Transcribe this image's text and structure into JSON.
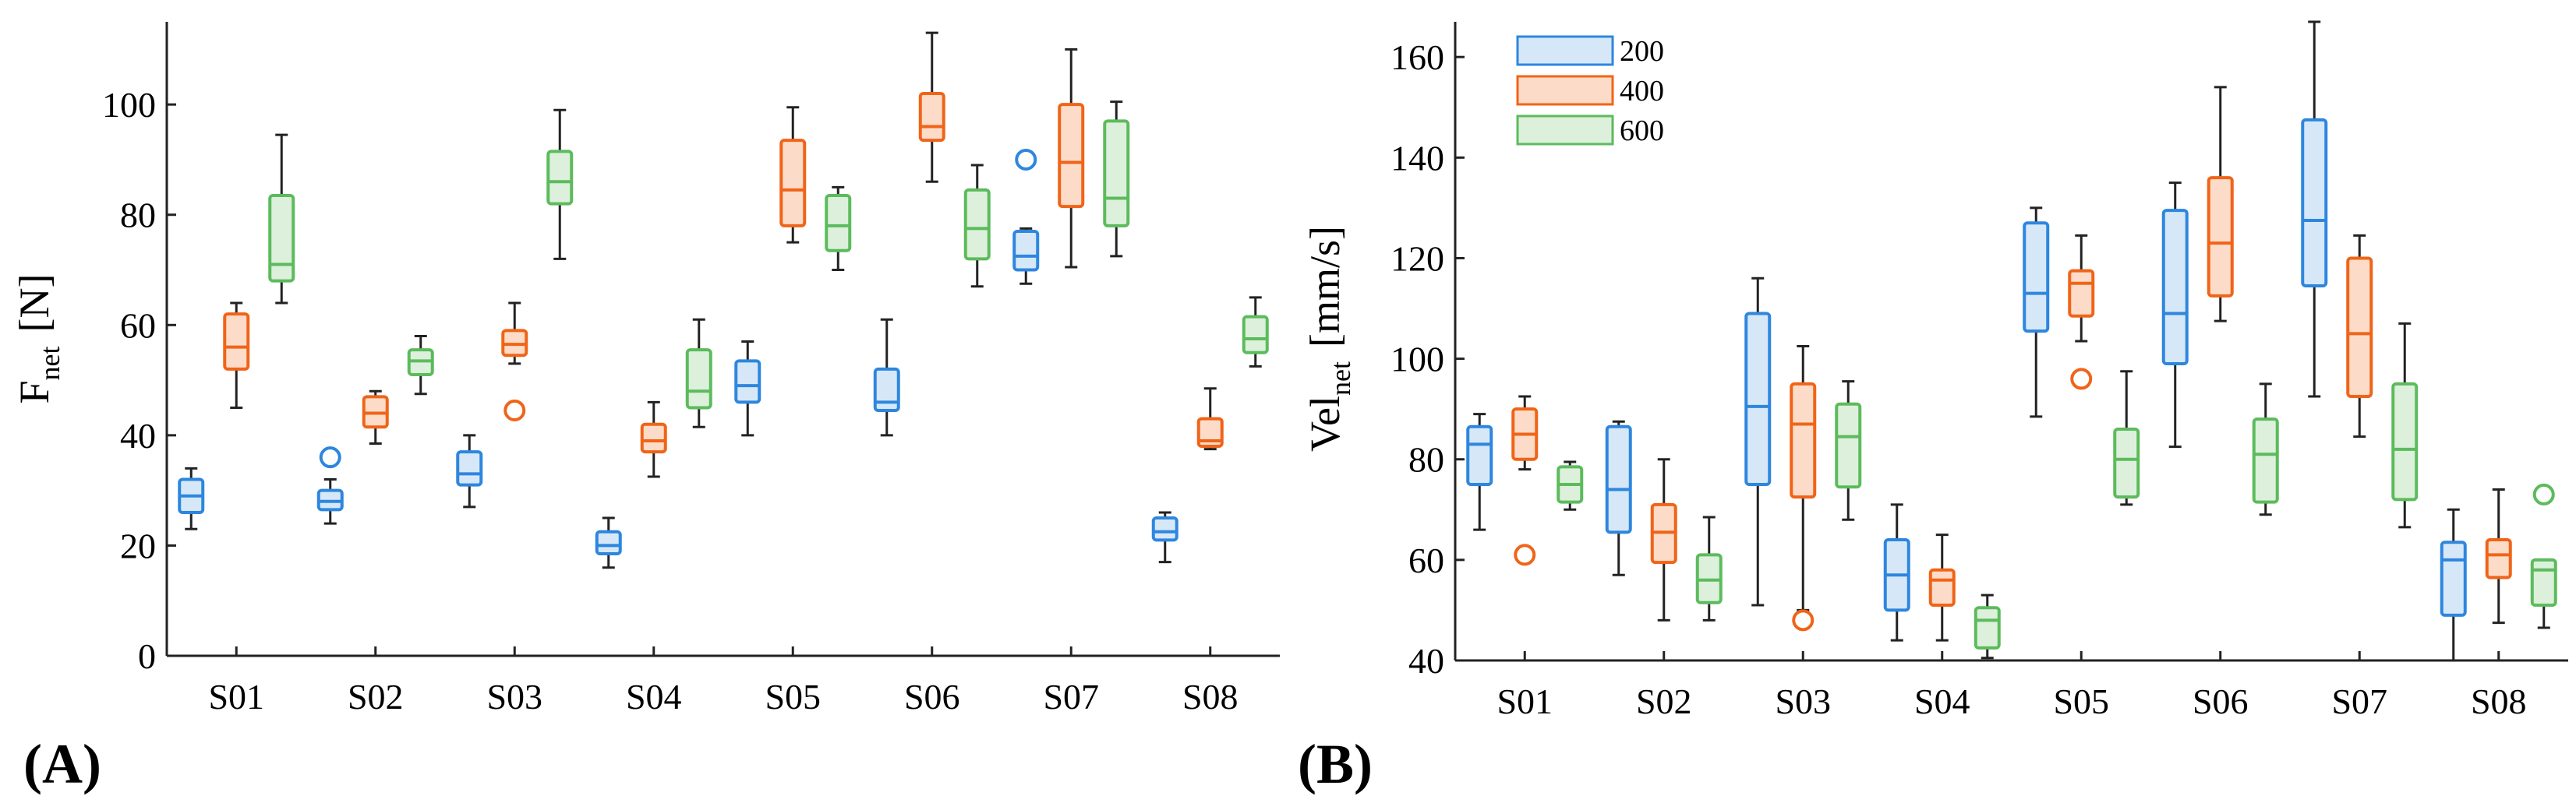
{
  "colors": {
    "200": "#2e86de",
    "400": "#f06418",
    "600": "#5cbb5c",
    "whisker": "#222222"
  },
  "legend": {
    "entries": [
      "200",
      "400",
      "600"
    ],
    "placement": "top-left"
  },
  "chart_data": [
    {
      "panel_label": "(A)",
      "type": "box",
      "categories": [
        "S01",
        "S02",
        "S03",
        "S04",
        "S05",
        "S06",
        "S07",
        "S08"
      ],
      "ylabel_main": "F",
      "ylabel_sub": "net",
      "ylabel_unit": "[N]",
      "ylim": [
        0,
        115
      ],
      "yticks": [
        0,
        20,
        40,
        60,
        80,
        100
      ],
      "series": [
        {
          "name": "200",
          "boxes": [
            {
              "min": 23,
              "q1": 26,
              "median": 29,
              "q3": 32,
              "max": 34
            },
            {
              "min": 24,
              "q1": 26.5,
              "median": 28,
              "q3": 30,
              "max": 32,
              "outliers": [
                36
              ]
            },
            {
              "min": 27,
              "q1": 31,
              "median": 33,
              "q3": 37,
              "max": 40
            },
            {
              "min": 16,
              "q1": 18.5,
              "median": 20,
              "q3": 22.5,
              "max": 25
            },
            {
              "min": 40,
              "q1": 46,
              "median": 49,
              "q3": 53.5,
              "max": 57
            },
            {
              "min": 40,
              "q1": 44.5,
              "median": 46,
              "q3": 52,
              "max": 61
            },
            {
              "min": 67.5,
              "q1": 70,
              "median": 72.5,
              "q3": 77,
              "max": 77.5,
              "outliers": [
                90
              ]
            },
            {
              "min": 17,
              "q1": 21,
              "median": 22.5,
              "q3": 25,
              "max": 26
            }
          ]
        },
        {
          "name": "400",
          "boxes": [
            {
              "min": 45,
              "q1": 52,
              "median": 56,
              "q3": 62,
              "max": 64
            },
            {
              "min": 38.5,
              "q1": 41.5,
              "median": 44,
              "q3": 47,
              "max": 48
            },
            {
              "min": 53,
              "q1": 54.5,
              "median": 56.5,
              "q3": 59,
              "max": 64,
              "outliers": [
                44.5
              ]
            },
            {
              "min": 32.5,
              "q1": 37,
              "median": 39,
              "q3": 42,
              "max": 46
            },
            {
              "min": 75,
              "q1": 78,
              "median": 84.5,
              "q3": 93.5,
              "max": 99.5
            },
            {
              "min": 86,
              "q1": 93.5,
              "median": 96,
              "q3": 102,
              "max": 113
            },
            {
              "min": 70.5,
              "q1": 81.5,
              "median": 89.5,
              "q3": 100,
              "max": 110
            },
            {
              "min": 37.5,
              "q1": 38,
              "median": 39,
              "q3": 43,
              "max": 48.5
            }
          ]
        },
        {
          "name": "600",
          "boxes": [
            {
              "min": 64,
              "q1": 68,
              "median": 71,
              "q3": 83.5,
              "max": 94.5
            },
            {
              "min": 47.5,
              "q1": 51,
              "median": 53.5,
              "q3": 55.5,
              "max": 58
            },
            {
              "min": 72,
              "q1": 82,
              "median": 86,
              "q3": 91.5,
              "max": 99
            },
            {
              "min": 41.5,
              "q1": 45,
              "median": 48,
              "q3": 55.5,
              "max": 61
            },
            {
              "min": 70,
              "q1": 73.5,
              "median": 78,
              "q3": 83.5,
              "max": 85
            },
            {
              "min": 67,
              "q1": 72,
              "median": 77.5,
              "q3": 84.5,
              "max": 89
            },
            {
              "min": 72.5,
              "q1": 78,
              "median": 83,
              "q3": 97,
              "max": 100.5
            },
            {
              "min": 52.5,
              "q1": 55,
              "median": 57.5,
              "q3": 61.5,
              "max": 65
            }
          ]
        }
      ]
    },
    {
      "panel_label": "(B)",
      "type": "box",
      "categories": [
        "S01",
        "S02",
        "S03",
        "S04",
        "S05",
        "S06",
        "S07",
        "S08"
      ],
      "ylabel_main": "Vel",
      "ylabel_sub": "net",
      "ylabel_unit": "[mm/s]",
      "ylim": [
        40,
        167
      ],
      "yticks": [
        40,
        60,
        80,
        100,
        120,
        140,
        160
      ],
      "series": [
        {
          "name": "200",
          "boxes": [
            {
              "min": 66,
              "q1": 75,
              "median": 83,
              "q3": 86.5,
              "max": 89
            },
            {
              "min": 57,
              "q1": 65.5,
              "median": 74,
              "q3": 86.5,
              "max": 87.5
            },
            {
              "min": 51,
              "q1": 75,
              "median": 90.5,
              "q3": 109,
              "max": 116
            },
            {
              "min": 44,
              "q1": 50,
              "median": 57,
              "q3": 64,
              "max": 71
            },
            {
              "min": 88.5,
              "q1": 105.5,
              "median": 113,
              "q3": 127,
              "max": 130
            },
            {
              "min": 82.5,
              "q1": 99,
              "median": 109,
              "q3": 129.5,
              "max": 135
            },
            {
              "min": 92.5,
              "q1": 114.5,
              "median": 127.5,
              "q3": 147.5,
              "max": 167
            },
            {
              "min": 40,
              "q1": 49,
              "median": 60,
              "q3": 63.5,
              "max": 70
            }
          ]
        },
        {
          "name": "400",
          "boxes": [
            {
              "min": 78,
              "q1": 80,
              "median": 85,
              "q3": 90,
              "max": 92.5,
              "outliers": [
                61
              ]
            },
            {
              "min": 48,
              "q1": 59.5,
              "median": 65.5,
              "q3": 71,
              "max": 80
            },
            {
              "min": 50,
              "q1": 72.5,
              "median": 87,
              "q3": 95,
              "max": 102.5,
              "outliers": [
                48
              ]
            },
            {
              "min": 44,
              "q1": 51,
              "median": 56,
              "q3": 58,
              "max": 65
            },
            {
              "min": 103.5,
              "q1": 108.5,
              "median": 115,
              "q3": 117.5,
              "max": 124.5,
              "outliers": [
                96
              ]
            },
            {
              "min": 107.5,
              "q1": 112.5,
              "median": 123,
              "q3": 136,
              "max": 154
            },
            {
              "min": 84.5,
              "q1": 92.5,
              "median": 105,
              "q3": 120,
              "max": 124.5
            },
            {
              "min": 47.5,
              "q1": 56.5,
              "median": 61,
              "q3": 64,
              "max": 74
            }
          ]
        },
        {
          "name": "600",
          "boxes": [
            {
              "min": 70,
              "q1": 71.5,
              "median": 75,
              "q3": 78.5,
              "max": 79.5
            },
            {
              "min": 48,
              "q1": 51.5,
              "median": 56,
              "q3": 61,
              "max": 68.5
            },
            {
              "min": 68,
              "q1": 74.5,
              "median": 84.5,
              "q3": 91,
              "max": 95.5
            },
            {
              "min": 40.5,
              "q1": 42.5,
              "median": 48,
              "q3": 50.5,
              "max": 53
            },
            {
              "min": 71,
              "q1": 72.5,
              "median": 80,
              "q3": 86,
              "max": 97.5
            },
            {
              "min": 69,
              "q1": 71.5,
              "median": 81,
              "q3": 88,
              "max": 95
            },
            {
              "min": 66.5,
              "q1": 72,
              "median": 82,
              "q3": 95,
              "max": 107
            },
            {
              "min": 46.5,
              "q1": 51,
              "median": 58,
              "q3": 60,
              "max": 60,
              "outliers": [
                73
              ]
            }
          ]
        }
      ]
    }
  ]
}
